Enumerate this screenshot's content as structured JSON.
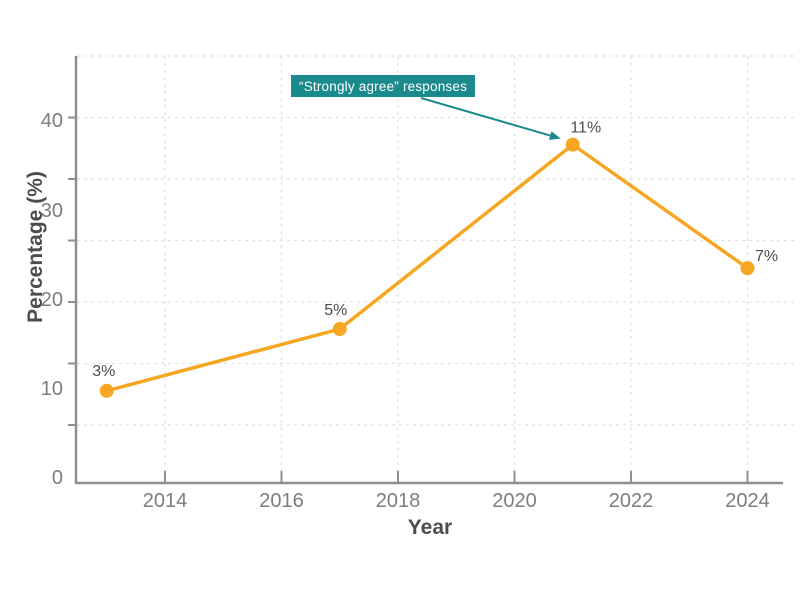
{
  "chart_data": {
    "type": "line",
    "title": "",
    "xlabel": "Year",
    "ylabel": "Percentage (%)",
    "x": [
      2013,
      2017,
      2021,
      2024
    ],
    "point_labels": [
      "3%",
      "5%",
      "11%",
      "7%"
    ],
    "values_labeled": [
      3,
      5,
      11,
      7
    ],
    "values_plotted_on_axis_scale": [
      10,
      16.7,
      36.7,
      23.3
    ],
    "x_tick_labels": [
      "2014",
      "2016",
      "2018",
      "2020",
      "2022",
      "2024"
    ],
    "y_tick_labels": [
      "0",
      "10",
      "20",
      "30",
      "40"
    ],
    "xlim": [
      2012.5,
      2024.8
    ],
    "ylim_axis_units": [
      0,
      46.5
    ],
    "grid": "dashed-both-axes",
    "legend": "none",
    "annotation": {
      "text": "“Strongly agree” responses",
      "arrow_to_x": 2021,
      "arrow_to_value_axis_units": 36.7
    },
    "colors": {
      "line": "#F5A623",
      "marker": "#F5A623",
      "annotation_bg": "#1B8A8D",
      "annotation_text": "#FFFFFF",
      "arrow": "#1B8A8D",
      "axis_tick_text": "#7D7D7D",
      "label_text": "#4D4D4D",
      "grid": "#E1E1E1",
      "spine": "#8F8F8F"
    }
  }
}
